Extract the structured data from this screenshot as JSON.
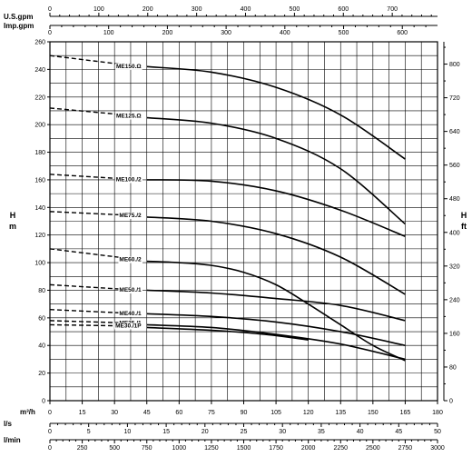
{
  "chart_data": {
    "type": "line",
    "xlabel": "m³/h",
    "xlim": [
      0,
      180
    ],
    "x_ticks": [
      0,
      15,
      30,
      45,
      60,
      75,
      90,
      105,
      120,
      135,
      150,
      165,
      180
    ],
    "ylabel": "H m",
    "ylim": [
      0,
      260
    ],
    "y_ticks": [
      0,
      20,
      40,
      60,
      80,
      100,
      120,
      140,
      160,
      180,
      200,
      220,
      240,
      260
    ],
    "right_axis": {
      "label": "H ft",
      "ticks": [
        0,
        80,
        160,
        240,
        320,
        400,
        480,
        560,
        640,
        720,
        800
      ]
    },
    "top_axes": [
      {
        "label": "U.S.gpm",
        "ticks": [
          0,
          100,
          200,
          300,
          400,
          500,
          600,
          700
        ],
        "scale": 4.4029
      },
      {
        "label": "Imp.gpm",
        "ticks": [
          0,
          100,
          200,
          300,
          400,
          500,
          600
        ],
        "scale": 3.6662
      }
    ],
    "bottom_axes": [
      {
        "label": "l/s",
        "ticks": [
          0,
          5,
          10,
          15,
          20,
          25,
          30,
          35,
          40,
          45,
          50
        ],
        "scale": 0.27778
      },
      {
        "label": "l/min",
        "ticks": [
          0,
          250,
          500,
          750,
          1000,
          1250,
          1500,
          1750,
          2000,
          2250,
          2500,
          2750,
          3000
        ],
        "scale": 16.6667
      }
    ],
    "grid": true,
    "series": [
      {
        "name": "ME150.Ω",
        "dashed": [
          [
            0,
            250
          ],
          [
            42,
            242
          ]
        ],
        "solid": [
          [
            45,
            242
          ],
          [
            75,
            238
          ],
          [
            105,
            227
          ],
          [
            135,
            207
          ],
          [
            165,
            175
          ]
        ]
      },
      {
        "name": "ME125.Ω",
        "dashed": [
          [
            0,
            212
          ],
          [
            42,
            206
          ]
        ],
        "solid": [
          [
            45,
            205
          ],
          [
            75,
            201
          ],
          [
            105,
            190
          ],
          [
            135,
            168
          ],
          [
            165,
            128
          ]
        ]
      },
      {
        "name": "ME100./2",
        "dashed": [
          [
            0,
            164
          ],
          [
            42,
            160
          ]
        ],
        "solid": [
          [
            45,
            160
          ],
          [
            75,
            159
          ],
          [
            105,
            152
          ],
          [
            135,
            138
          ],
          [
            165,
            119
          ]
        ]
      },
      {
        "name": "ME75./2",
        "dashed": [
          [
            0,
            137
          ],
          [
            42,
            134
          ]
        ],
        "solid": [
          [
            45,
            133
          ],
          [
            75,
            130
          ],
          [
            105,
            121
          ],
          [
            135,
            104
          ],
          [
            165,
            77
          ]
        ]
      },
      {
        "name": "ME60./2",
        "dashed": [
          [
            0,
            110
          ],
          [
            42,
            102
          ]
        ],
        "solid": [
          [
            45,
            101
          ],
          [
            60,
            100
          ],
          [
            75,
            98
          ],
          [
            90,
            93
          ],
          [
            105,
            84
          ],
          [
            120,
            70
          ],
          [
            135,
            55
          ],
          [
            150,
            40
          ],
          [
            165,
            29
          ]
        ]
      },
      {
        "name": "ME50./1",
        "dashed": [
          [
            0,
            84
          ],
          [
            42,
            80
          ]
        ],
        "solid": [
          [
            45,
            80
          ],
          [
            75,
            78
          ],
          [
            105,
            74
          ],
          [
            135,
            69
          ],
          [
            165,
            58
          ]
        ]
      },
      {
        "name": "ME40./1",
        "dashed": [
          [
            0,
            66
          ],
          [
            42,
            63
          ]
        ],
        "solid": [
          [
            45,
            63
          ],
          [
            75,
            61
          ],
          [
            105,
            57
          ],
          [
            135,
            50
          ],
          [
            165,
            40
          ]
        ]
      },
      {
        "name": "ME35./1",
        "dashed": [
          [
            0,
            58
          ],
          [
            42,
            56
          ]
        ],
        "solid": [
          [
            45,
            55
          ],
          [
            75,
            53
          ],
          [
            105,
            48
          ],
          [
            135,
            41
          ],
          [
            165,
            30
          ]
        ]
      },
      {
        "name": "ME30./1P",
        "dashed": [
          [
            0,
            55
          ],
          [
            42,
            54
          ]
        ],
        "solid": [
          [
            45,
            53
          ],
          [
            75,
            51
          ],
          [
            100,
            48
          ],
          [
            120,
            44
          ]
        ]
      }
    ]
  }
}
